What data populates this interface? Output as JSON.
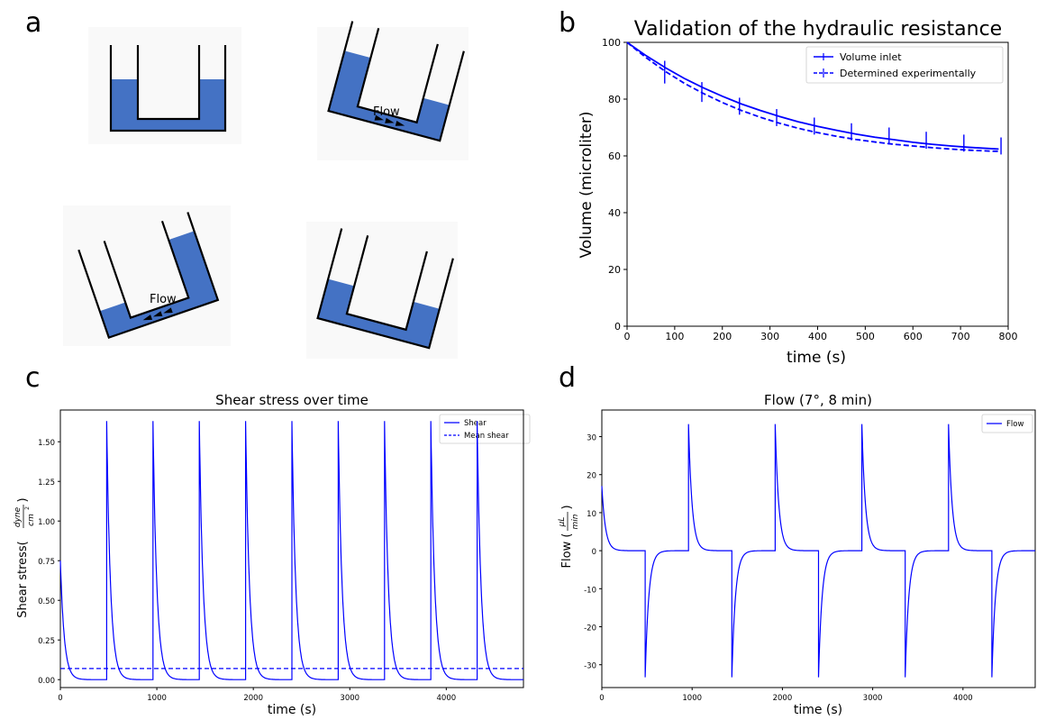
{
  "panels": {
    "a": {
      "letter": "a",
      "flow_label_1": "Flow",
      "flow_label_2": "Flow"
    },
    "b": {
      "letter": "b"
    },
    "c": {
      "letter": "c"
    },
    "d": {
      "letter": "d"
    }
  },
  "colors": {
    "fluid": "#4472c4",
    "line": "#0000ff",
    "axis": "#000000",
    "background": "#ffffff"
  },
  "chart_data": [
    {
      "panel": "b",
      "type": "line",
      "title": "Validation of the hydraulic resistance",
      "xlabel": "time (s)",
      "ylabel": "Volume (microliter)",
      "xlim": [
        0,
        800
      ],
      "ylim": [
        0,
        100
      ],
      "xticks": [
        0,
        100,
        200,
        300,
        400,
        500,
        600,
        700,
        800
      ],
      "yticks": [
        0,
        20,
        40,
        60,
        80,
        100
      ],
      "grid": false,
      "legend_position": "top-right",
      "series": [
        {
          "name": "Volume inlet",
          "style": "solid",
          "x": [
            0,
            40,
            80,
            120,
            160,
            200,
            240,
            280,
            320,
            360,
            400,
            440,
            480,
            520,
            560,
            600,
            640,
            680,
            720,
            760,
            780
          ],
          "y": [
            100,
            95.3,
            91.1,
            87.3,
            84.0,
            81.0,
            78.3,
            76.0,
            73.9,
            72.0,
            70.4,
            69.0,
            67.7,
            66.6,
            65.7,
            64.8,
            64.1,
            63.5,
            63.0,
            62.6,
            62.4
          ]
        },
        {
          "name": "Determined experimentally",
          "style": "dashed",
          "x": [
            0,
            40,
            80,
            120,
            160,
            200,
            240,
            280,
            320,
            360,
            400,
            440,
            480,
            520,
            560,
            600,
            640,
            680,
            720,
            760,
            780
          ],
          "y": [
            100,
            94.6,
            89.8,
            85.6,
            82.0,
            78.8,
            76.0,
            73.6,
            71.5,
            69.7,
            68.2,
            66.9,
            65.8,
            64.9,
            64.1,
            63.5,
            62.9,
            62.4,
            62.0,
            61.7,
            61.6
          ]
        }
      ],
      "errorbars": {
        "x": [
          79,
          157,
          236,
          314,
          393,
          471,
          550,
          628,
          707,
          785
        ],
        "y": [
          89.5,
          82.5,
          77.5,
          73.5,
          70.5,
          68.5,
          67,
          65.5,
          64.5,
          63.5
        ],
        "err": [
          4,
          3.5,
          3,
          3,
          3,
          3,
          3,
          3,
          3,
          3
        ]
      }
    },
    {
      "panel": "c",
      "type": "line",
      "title": "Shear stress over time",
      "xlabel": "time (s)",
      "ylabel_main": "Shear stress(",
      "ylabel_num": "dyne",
      "ylabel_den": "cm",
      "ylabel_sup": "2",
      "ylabel_close": ")",
      "xlim": [
        0,
        4800
      ],
      "ylim": [
        -0.05,
        1.7
      ],
      "xticks": [
        0,
        1000,
        2000,
        3000,
        4000
      ],
      "yticks": [
        "0.00",
        "0.25",
        "0.50",
        "0.75",
        "1.00",
        "1.25",
        "1.50"
      ],
      "legend_position": "top-right",
      "series": [
        {
          "name": "Shear",
          "style": "solid",
          "peak": 1.63,
          "initial": 0.75,
          "peak_times": [
            480,
            960,
            1440,
            1920,
            2400,
            2880,
            3360,
            3840,
            4320
          ],
          "decay_tau": 40
        },
        {
          "name": "Mean shear",
          "style": "dashed",
          "value": 0.07
        }
      ]
    },
    {
      "panel": "d",
      "type": "line",
      "title": "Flow (7°, 8 min)",
      "xlabel": "time (s)",
      "ylabel_main": "Flow (",
      "ylabel_num": "μL",
      "ylabel_den": "min",
      "ylabel_close": ")",
      "xlim": [
        0,
        4800
      ],
      "ylim": [
        -36,
        37
      ],
      "xticks": [
        0,
        1000,
        2000,
        3000,
        4000
      ],
      "yticks": [
        -30,
        -20,
        -10,
        0,
        10,
        20,
        30
      ],
      "legend_position": "top-right",
      "series": [
        {
          "name": "Flow",
          "style": "solid",
          "peak": 33.3,
          "initial": 17,
          "pulse_times": [
            480,
            960,
            1440,
            1920,
            2400,
            2880,
            3360,
            3840,
            4320
          ],
          "pulse_signs": [
            -1,
            1,
            -1,
            1,
            -1,
            1,
            -1,
            1,
            -1
          ],
          "decay_tau": 40
        }
      ]
    }
  ]
}
